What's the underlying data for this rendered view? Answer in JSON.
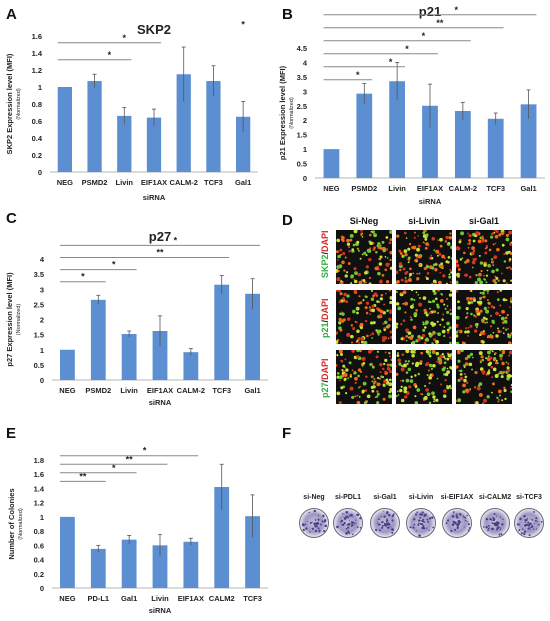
{
  "panels": {
    "A": {
      "letter": "A"
    },
    "B": {
      "letter": "B"
    },
    "C": {
      "letter": "C"
    },
    "D": {
      "letter": "D"
    },
    "E": {
      "letter": "E"
    },
    "F": {
      "letter": "F"
    }
  },
  "chart_data": [
    {
      "id": "A",
      "type": "bar",
      "title": "SKP2",
      "ylabel": "SKP2 Expression level (MFI)",
      "ysublabel": "(Normalized)",
      "xlabel": "siRNA",
      "categories": [
        "NEG",
        "PSMD2",
        "Livin",
        "EIF1AX",
        "CALM-2",
        "TCF3",
        "Gal1"
      ],
      "values": [
        1.0,
        1.07,
        0.66,
        0.64,
        1.15,
        1.07,
        0.65
      ],
      "errors": [
        0,
        0.08,
        0.1,
        0.1,
        0.32,
        0.18,
        0.18
      ],
      "ylim": [
        0,
        1.6
      ],
      "yticks": [
        "0",
        "0.2",
        "0.4",
        "0.6",
        "0.8",
        "1",
        "1.2",
        "1.4",
        "1.6"
      ],
      "ytick_values": [
        0,
        0.2,
        0.4,
        0.6,
        0.8,
        1.0,
        1.2,
        1.4,
        1.6
      ],
      "significance": [
        {
          "from": "NEG",
          "to": "Livin",
          "label": "*",
          "y": 1.32
        },
        {
          "from": "NEG",
          "to": "EIF1AX",
          "label": "*",
          "y": 1.52
        },
        {
          "from": "Gal1",
          "to": "Gal1",
          "label": "*",
          "y": 1.7,
          "no_line": true
        }
      ]
    },
    {
      "id": "B",
      "type": "bar",
      "title": "p21",
      "ylabel": "p21 Expression level (MFI)",
      "ysublabel": "(Normalized)",
      "xlabel": "siRNA",
      "categories": [
        "NEG",
        "PSMD2",
        "Livin",
        "EIF1AX",
        "CALM-2",
        "TCF3",
        "Gal1"
      ],
      "values": [
        1.0,
        2.92,
        3.35,
        2.5,
        2.32,
        2.05,
        2.55
      ],
      "errors": [
        0,
        0.35,
        0.65,
        0.75,
        0.3,
        0.2,
        0.5
      ],
      "ylim": [
        0,
        4.5
      ],
      "yticks": [
        "0",
        "0.5",
        "1",
        "1.5",
        "2",
        "2.5",
        "3",
        "3.5",
        "4",
        "4.5"
      ],
      "ytick_values": [
        0,
        0.5,
        1.0,
        1.5,
        2.0,
        2.5,
        3.0,
        3.5,
        4.0,
        4.5
      ],
      "significance": [
        {
          "from": "NEG",
          "to": "PSMD2",
          "label": "*",
          "y": 3.4
        },
        {
          "from": "NEG",
          "to": "Livin",
          "label": "*",
          "y": 3.85
        },
        {
          "from": "NEG",
          "to": "EIF1AX",
          "label": "*",
          "y": 4.3
        },
        {
          "from": "NEG",
          "to": "CALM-2",
          "label": "*",
          "y": 4.75
        },
        {
          "from": "NEG",
          "to": "TCF3",
          "label": "**",
          "y": 5.2
        },
        {
          "from": "NEG",
          "to": "Gal1",
          "label": "*",
          "y": 5.65
        }
      ]
    },
    {
      "id": "C",
      "type": "bar",
      "title": "p27",
      "ylabel": "p27 Expression level (MFI)",
      "ysublabel": "(Normalized)",
      "xlabel": "siRNA",
      "categories": [
        "NEG",
        "PSMD2",
        "Livin",
        "EIF1AX",
        "CALM-2",
        "TCF3",
        "Gal1"
      ],
      "values": [
        1.0,
        2.65,
        1.52,
        1.62,
        0.92,
        3.15,
        2.85
      ],
      "errors": [
        0,
        0.15,
        0.1,
        0.5,
        0.12,
        0.3,
        0.5
      ],
      "ylim": [
        0,
        4
      ],
      "yticks": [
        "0",
        "0.5",
        "1",
        "1.5",
        "2",
        "2.5",
        "3",
        "3.5",
        "4"
      ],
      "ytick_values": [
        0,
        0.5,
        1.0,
        1.5,
        2.0,
        2.5,
        3.0,
        3.5,
        4.0
      ],
      "significance": [
        {
          "from": "NEG",
          "to": "PSMD2",
          "label": "*",
          "y": 3.25
        },
        {
          "from": "NEG",
          "to": "Livin",
          "label": "*",
          "y": 3.65
        },
        {
          "from": "NEG",
          "to": "TCF3",
          "label": "**",
          "y": 4.05
        },
        {
          "from": "NEG",
          "to": "Gal1",
          "label": "*",
          "y": 4.45
        }
      ]
    },
    {
      "id": "E",
      "type": "bar",
      "title": "",
      "ylabel": "Number of Colonies",
      "ysublabel": "(Normalized)",
      "xlabel": "siRNA",
      "categories": [
        "NEG",
        "PD-L1",
        "Gal1",
        "Livin",
        "EIF1AX",
        "CALM2",
        "TCF3"
      ],
      "values": [
        1.0,
        0.55,
        0.68,
        0.6,
        0.65,
        1.42,
        1.01
      ],
      "errors": [
        0,
        0.05,
        0.06,
        0.15,
        0.05,
        0.32,
        0.3
      ],
      "ylim": [
        0,
        1.8
      ],
      "yticks": [
        "0",
        "0.2",
        "0.4",
        "0.6",
        "0.8",
        "1",
        "1.2",
        "1.4",
        "1.6",
        "1.8"
      ],
      "ytick_values": [
        0,
        0.2,
        0.4,
        0.6,
        0.8,
        1.0,
        1.2,
        1.4,
        1.6,
        1.8
      ],
      "significance": [
        {
          "from": "NEG",
          "to": "PD-L1",
          "label": "**",
          "y": 1.5
        },
        {
          "from": "NEG",
          "to": "Gal1",
          "label": "*",
          "y": 1.62
        },
        {
          "from": "NEG",
          "to": "Livin",
          "label": "**",
          "y": 1.74
        },
        {
          "from": "NEG",
          "to": "EIF1AX",
          "label": "*",
          "y": 1.86
        }
      ]
    }
  ],
  "microscopy": {
    "columns": [
      "Si-Neg",
      "si-Livin",
      "si-Gal1"
    ],
    "rows": [
      {
        "marker": "SKP2",
        "sep": "/",
        "dapi": "DAPI",
        "marker_color": "#2fae3c",
        "dapi_color": "#d42a2a"
      },
      {
        "marker": "p21",
        "sep": "/",
        "dapi": "DAPI",
        "marker_color": "#2fae3c",
        "dapi_color": "#d42a2a"
      },
      {
        "marker": "p27",
        "sep": "/",
        "dapi": "DAPI",
        "marker_color": "#2fae3c",
        "dapi_color": "#d42a2a"
      }
    ]
  },
  "colony_assay": {
    "labels": [
      "si-Neg",
      "si-PDL1",
      "si-Gal1",
      "si-Livin",
      "si-EIF1AX",
      "si-CALM2",
      "si-TCF3"
    ]
  },
  "colors": {
    "bar": "#5b8fd1",
    "error": "#555555",
    "sig_line": "#888888",
    "axis": "#b5b5b5"
  }
}
